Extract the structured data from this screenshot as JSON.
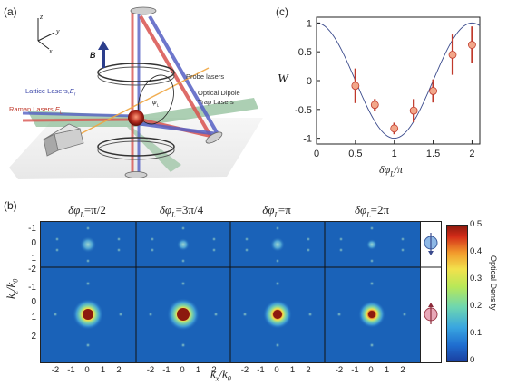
{
  "panels": {
    "a": {
      "label": "(a)",
      "axes": {
        "z": "z",
        "y": "y",
        "x": "x"
      },
      "field_label": "B",
      "labels": {
        "lattice": "Lattice Lasers,",
        "lattice_sym": "E",
        "lattice_sub": "r",
        "raman": "Raman Lasers,",
        "raman_sym": "E",
        "raman_sub": "L",
        "probe": "Probe lasers",
        "dipole1": "Optical Dipole",
        "dipole2": "Trap Lasers",
        "phi_sym": "φ",
        "phi_sub": "L"
      }
    },
    "b": {
      "label": "(b)",
      "titles": [
        {
          "pre": "δφ",
          "sub": "L",
          "val": "=π/2"
        },
        {
          "pre": "δφ",
          "sub": "L",
          "val": "=3π/4"
        },
        {
          "pre": "δφ",
          "sub": "L",
          "val": "=π"
        },
        {
          "pre": "δφ",
          "sub": "L",
          "val": "=2π"
        }
      ],
      "ylabel_k": "k",
      "ylabel_sub": "z",
      "ylabel_rest": "/k",
      "ylabel_sub2": "0",
      "xlabel_k": "k",
      "xlabel_sub": "x",
      "xlabel_rest": "/k",
      "xlabel_sub2": "0",
      "yticks_top": [
        "-1",
        "0",
        "1"
      ],
      "yticks_bottom": [
        "-2",
        "-1",
        "0",
        "1",
        "2"
      ],
      "xticks": [
        "-2",
        "-1",
        "0",
        "1",
        "2"
      ],
      "colorbar": {
        "label": "Optical Density",
        "ticks": [
          "0.5",
          "0.4",
          "0.3",
          "0.2",
          "0.1",
          "0"
        ]
      }
    },
    "c": {
      "label": "(c)",
      "xlabel_pre": "δφ",
      "xlabel_sub": "L",
      "xlabel_rest": "/π",
      "ylabel": "W",
      "xticks": [
        "0",
        "0.5",
        "1",
        "1.5",
        "2"
      ],
      "yticks": [
        "1",
        "0.5",
        "0",
        "-0.5",
        "-1"
      ]
    }
  },
  "chart_data": {
    "type": "scatter",
    "xlabel": "δφL/π",
    "ylabel": "W",
    "xlim": [
      0,
      2.1
    ],
    "ylim": [
      -1.1,
      1.1
    ],
    "x": [
      0.5,
      0.75,
      1.0,
      1.25,
      1.5,
      1.75,
      2.0
    ],
    "values": [
      -0.09,
      -0.42,
      -0.83,
      -0.52,
      -0.18,
      0.45,
      0.62
    ],
    "errors": [
      0.3,
      0.1,
      0.1,
      0.2,
      0.2,
      0.35,
      0.32
    ],
    "curve": {
      "type": "line",
      "function": "cos(pi*x)",
      "color": "#3a4a8c"
    },
    "marker_color": "#f2a78a",
    "error_color": "#c0392b"
  }
}
